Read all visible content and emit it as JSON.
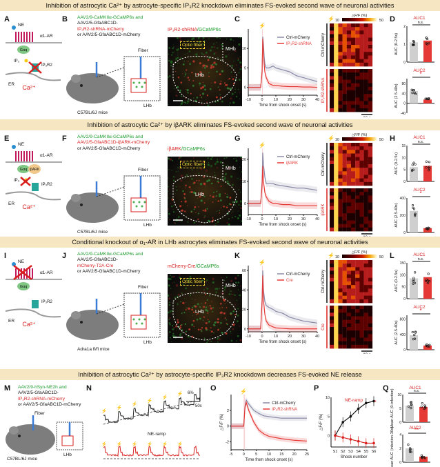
{
  "rows": [
    {
      "banner": "Inhibition of astrocytic Ca²⁺ by astrocyte-specific IP₃R2 knockdown eliminates FS-evoked second wave of neuronal activities",
      "letters": [
        "A",
        "B",
        "C",
        "D"
      ],
      "virus": [
        "AAV2/9-CaMKIIα-GCaMP6s and",
        "AAV2/5-GfaABC1D-",
        "IP₃R2-shRNA-mCherry",
        "or AAV2/5-GfaABC1D-mCherry"
      ],
      "micro_title_red": "IP₃R2-shRNA",
      "micro_title_green": "/GCaMP6s",
      "mouse": "C57BL/6J mice",
      "legend": [
        "Ctrl-mCherry",
        "IP₃R2-shRNA"
      ],
      "heat_labels": [
        "Ctrl-mCherry",
        "IP₃R2-shRNA"
      ],
      "auc": {
        "auc1": "AUC1",
        "auc2": "AUC2",
        "y1": "AUC (0-2.5s)",
        "y2": "AUC (2.5-40s)",
        "ns": "n.s.",
        "sig": "*"
      }
    },
    {
      "banner": "Inhibition of  astrocytic Ca²⁺ by iβARK eliminates FS-evoked second wave of neuronal activities",
      "letters": [
        "E",
        "F",
        "G",
        "H"
      ],
      "virus": [
        "AAV2/9-CaMKIIα-GCaMP6s and",
        "AAV2/5-GfaABC1D-iβARK-mCherry",
        "or AAV2/5-GfaABC1D-mCherry"
      ],
      "micro_title_red": "iβARK",
      "micro_title_green": "/GCaMP6s",
      "mouse": "C57BL/6J mice",
      "legend": [
        "Ctrl-mCherry",
        "iβARK"
      ],
      "heat_labels": [
        "Ctrl-mCherry",
        "iβARK"
      ],
      "auc": {
        "auc1": "AUC1",
        "auc2": "AUC2",
        "y1": "AUC (0-2.5s)",
        "y2": "AUC (2.5-40s)",
        "ns": "n.s.",
        "sig": "*"
      }
    },
    {
      "banner": "Conditional knockout of α₁-AR in LHb astrocytes eliminates FS-evoked second wave of neuronal activities",
      "letters": [
        "I",
        "J",
        "K",
        "L"
      ],
      "virus": [
        "AAV2/9-CaMKIIα-GCaMP6s and",
        "AAV2/5-GfaABC1D-",
        "mCherry-T2A-Cre",
        "or AAV2/5-GfaABC1D-mCherry"
      ],
      "micro_title_red": "mCherry-Cre",
      "micro_title_green": "/GCaMP6s",
      "mouse": "Adra1a fl/fl mice",
      "legend": [
        "Ctrl-mCherry",
        "Cre"
      ],
      "heat_labels": [
        "Ctrl-mCherry",
        "Cre"
      ],
      "auc": {
        "auc1": "AUC1",
        "auc2": "AUC2",
        "y1": "AUC (0-2.5s)",
        "y2": "AUC (2.5-40s)",
        "ns": "n.s.",
        "sig": "*"
      }
    }
  ],
  "common": {
    "ne": "NE",
    "a1ar": "α1-AR",
    "gaq": "Gαq",
    "ip3": "IP₃",
    "ip3r2": "IP₃R2",
    "er": "ER",
    "ca": "Ca²⁺",
    "ibark": "iβARK",
    "fiber": "Fiber",
    "lhb": "LHb",
    "mhb": "MHb",
    "optic": "Optic fiber",
    "dff": "△F/F (%)",
    "time_axis": "Time from shock onset (s)",
    "scale10": "10 s",
    "cb_title": "△F/F (%)",
    "cb_min": "10",
    "cb_max": "50"
  },
  "bottom": {
    "banner": "Inhibition of astrocytic Ca²⁺ by astrocyte-specific IP₃R2 knockdown decreases FS-evoked NE release",
    "letters": [
      "M",
      "N",
      "O",
      "P",
      "Q"
    ],
    "virus": [
      "AAV2/9-hSyn-NE2h and",
      "AAV2/5-GfaABC1D-",
      "IP₃R2-shRNA-mCherry",
      "or AAV2/5-GfaABC1D-mCherry"
    ],
    "mouse": "C57BL/6J mice",
    "ne_ramp": "NE-ramp",
    "scale_pct": "6%",
    "scale_s": "50s",
    "legend": [
      "Ctrl-mCherry",
      "IP₃R2-shRNA"
    ],
    "p_title": "NE-ramp",
    "p_y": "△F/F (%)",
    "p_x": "Shock number",
    "shocks": [
      "S1",
      "S2",
      "S3",
      "S4",
      "S5",
      "S6"
    ],
    "auc": {
      "auc1": "AUC1",
      "auc2": "AUC2",
      "y1": "Mean AUC (0-infection)",
      "y2": "Mean AUC (infection-30s)",
      "ns": "n.s.",
      "sig": "**"
    }
  },
  "chart_data": [
    {
      "type": "line",
      "panel": "C",
      "title": "",
      "xlabel": "Time from shock onset (s)",
      "ylabel": "△F/F (%)",
      "xlim": [
        -10,
        40
      ],
      "ylim": [
        -2,
        15
      ],
      "x": [
        -10,
        -5,
        -1,
        0,
        0.5,
        1,
        1.5,
        2,
        3,
        5,
        8,
        10,
        15,
        20,
        25,
        30,
        35,
        40
      ],
      "series": [
        {
          "name": "Ctrl-mCherry",
          "values": [
            0,
            0,
            0,
            4,
            13,
            11,
            8,
            6,
            5,
            5,
            5.5,
            5,
            4.5,
            4,
            3,
            2.5,
            2,
            1.5
          ]
        },
        {
          "name": "IP₃R2-shRNA",
          "values": [
            0,
            0,
            0,
            4,
            12.5,
            9,
            6,
            4,
            2.5,
            1,
            0.5,
            0.5,
            0.3,
            0.2,
            0.2,
            0.1,
            0.1,
            0
          ]
        }
      ],
      "xticks": [
        -10,
        0,
        10,
        20,
        30,
        40
      ],
      "yticks": [
        0,
        5,
        10
      ]
    },
    {
      "type": "bar",
      "panel": "D-AUC1",
      "categories": [
        "Ctrl",
        "shRNA"
      ],
      "values": [
        1.1,
        1.2
      ],
      "ylim": [
        0,
        2
      ],
      "yticks": [
        0,
        1,
        2
      ]
    },
    {
      "type": "bar",
      "panel": "D-AUC2",
      "categories": [
        "Ctrl",
        "shRNA"
      ],
      "values": [
        50,
        15
      ],
      "ylim": [
        -40,
        100
      ],
      "yticks": [
        -40,
        0,
        40,
        80
      ]
    },
    {
      "type": "line",
      "panel": "G",
      "xlabel": "Time from shock onset (s)",
      "ylabel": "△F/F (%)",
      "xlim": [
        -10,
        40
      ],
      "ylim": [
        -5,
        25
      ],
      "x": [
        -10,
        -5,
        -1,
        0,
        0.5,
        1,
        2,
        3,
        5,
        8,
        10,
        15,
        20,
        25,
        30,
        35,
        40
      ],
      "series": [
        {
          "name": "Ctrl-mCherry",
          "values": [
            0,
            0,
            0,
            10,
            23,
            18,
            12,
            9,
            9,
            9,
            8.5,
            8,
            7.5,
            7,
            7,
            6.5,
            6
          ]
        },
        {
          "name": "iβARK",
          "values": [
            0,
            0,
            0,
            8,
            17,
            10,
            5,
            3,
            1,
            0,
            0,
            -0.5,
            -0.5,
            -1,
            -1,
            -1,
            -1
          ]
        }
      ],
      "xticks": [
        -10,
        0,
        10,
        20,
        30,
        40
      ],
      "yticks": [
        0,
        10,
        20
      ]
    },
    {
      "type": "bar",
      "panel": "H-AUC1",
      "categories": [
        "Ctrl",
        "iβARK"
      ],
      "values": [
        6,
        6.5
      ],
      "ylim": [
        0,
        15
      ],
      "yticks": [
        0,
        5,
        10,
        15
      ]
    },
    {
      "type": "bar",
      "panel": "H-AUC2",
      "categories": [
        "Ctrl",
        "iβARK"
      ],
      "values": [
        250,
        50
      ],
      "ylim": [
        0,
        400
      ],
      "yticks": [
        0,
        200,
        400
      ]
    },
    {
      "type": "line",
      "panel": "K",
      "xlabel": "Time from shock onset (s)",
      "ylabel": "△F/F",
      "xlim": [
        -10,
        40
      ],
      "ylim": [
        -3,
        65
      ],
      "x": [
        -10,
        -5,
        -1,
        0,
        0.5,
        1,
        2,
        3,
        5,
        8,
        10,
        15,
        20,
        25,
        30,
        35,
        40
      ],
      "series": [
        {
          "name": "Ctrl-mCherry",
          "values": [
            0,
            0,
            0,
            30,
            60,
            40,
            28,
            24,
            22,
            20,
            18,
            16,
            12,
            10,
            8,
            7,
            6
          ]
        },
        {
          "name": "Cre",
          "values": [
            0,
            0,
            0,
            28,
            55,
            30,
            15,
            8,
            4,
            2,
            1,
            0.5,
            0,
            0,
            0,
            0,
            0
          ]
        }
      ],
      "xticks": [
        -10,
        0,
        10,
        20,
        30,
        40
      ],
      "yticks": [
        0,
        20,
        40,
        60
      ]
    },
    {
      "type": "bar",
      "panel": "L-AUC1",
      "categories": [
        "Ctrl",
        "Cre"
      ],
      "values": [
        85,
        90
      ],
      "ylim": [
        0,
        150
      ],
      "yticks": [
        0,
        50,
        100,
        150
      ]
    },
    {
      "type": "bar",
      "panel": "L-AUC2",
      "categories": [
        "Ctrl",
        "Cre"
      ],
      "values": [
        380,
        110
      ],
      "ylim": [
        0,
        900
      ],
      "yticks": [
        0,
        400,
        800
      ]
    },
    {
      "type": "line",
      "panel": "O",
      "xlabel": "Time from shock onset (s)",
      "ylabel": "△F/F (%)",
      "xlim": [
        -5,
        25
      ],
      "ylim": [
        -3,
        4
      ],
      "x": [
        -5,
        -2,
        0,
        0.5,
        1,
        2,
        4,
        6,
        8,
        10,
        15,
        20,
        25
      ],
      "series": [
        {
          "name": "Ctrl-mCherry",
          "values": [
            0,
            0,
            0,
            2.5,
            3.3,
            2.8,
            2,
            1.6,
            1.3,
            1.2,
            1,
            1,
            1
          ]
        },
        {
          "name": "IP₃R2-shRNA",
          "values": [
            0,
            0,
            0,
            2.3,
            3,
            2,
            0.5,
            -0.5,
            -1,
            -1.3,
            -1.6,
            -1.8,
            -1.9
          ]
        }
      ],
      "xticks": [
        -5,
        0,
        5,
        10,
        15,
        20,
        25
      ],
      "yticks": [
        -2,
        0,
        2
      ]
    },
    {
      "type": "line",
      "panel": "P",
      "title": "NE-ramp",
      "xlabel": "Shock number",
      "ylabel": "△F/F (%)",
      "ylim": [
        -3,
        10
      ],
      "categories": [
        "S1",
        "S2",
        "S3",
        "S4",
        "S5",
        "S6"
      ],
      "series": [
        {
          "name": "Ctrl-mCherry",
          "values": [
            0,
            3.5,
            5,
            7,
            8.5,
            9
          ]
        },
        {
          "name": "IP₃R2-shRNA",
          "values": [
            0,
            -0.5,
            -1,
            -1.5,
            -2,
            -2
          ]
        }
      ],
      "yticks": [
        0,
        5,
        10
      ]
    },
    {
      "type": "bar",
      "panel": "Q-AUC1",
      "categories": [
        "Ctrl",
        "shRNA"
      ],
      "values": [
        6,
        5.5
      ],
      "ylim": [
        0,
        10
      ],
      "yticks": [
        0,
        5,
        10
      ]
    },
    {
      "type": "bar",
      "panel": "Q-AUC2",
      "categories": [
        "Ctrl",
        "shRNA"
      ],
      "values": [
        2,
        0.8
      ],
      "ylim": [
        0,
        4
      ],
      "yticks": [
        0,
        2,
        4
      ]
    }
  ]
}
